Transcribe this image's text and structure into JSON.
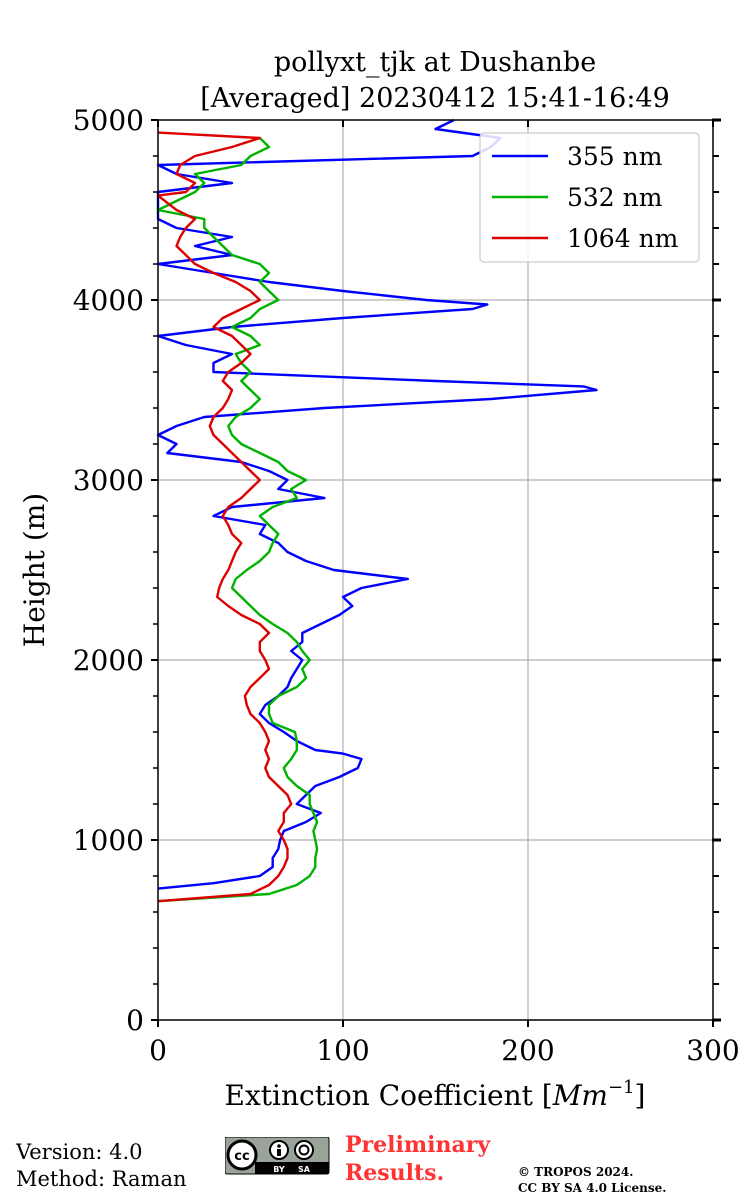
{
  "chart_data": {
    "type": "line",
    "title_line1": "pollyxt_tjk at Dushanbe",
    "title_line2": "[Averaged] 20230412 15:41-16:49",
    "xlabel": "Extinction Coefficient [",
    "xlabel_unit": "Mm",
    "xlabel_exp": "−1",
    "xlabel_close": "]",
    "ylabel": "Height (m)",
    "xlim": [
      0,
      300
    ],
    "ylim": [
      0,
      5000
    ],
    "xticks": [
      0,
      100,
      200,
      300
    ],
    "yticks": [
      0,
      1000,
      2000,
      3000,
      4000,
      5000
    ],
    "xtick_labels": [
      "0",
      "100",
      "200",
      "300"
    ],
    "ytick_labels": [
      "0",
      "1000",
      "2000",
      "3000",
      "4000",
      "5000"
    ],
    "grid": true,
    "legend_position": "top-right",
    "series": [
      {
        "name": "355 nm",
        "color": "#0000ff",
        "height": [
          730,
          760,
          800,
          850,
          900,
          950,
          1000,
          1050,
          1100,
          1150,
          1200,
          1250,
          1300,
          1350,
          1400,
          1450,
          1480,
          1500,
          1550,
          1600,
          1650,
          1700,
          1750,
          1800,
          1850,
          1900,
          1950,
          2000,
          2050,
          2100,
          2150,
          2200,
          2250,
          2300,
          2350,
          2400,
          2450,
          2500,
          2550,
          2600,
          2650,
          2700,
          2750,
          2800,
          2850,
          2900,
          2950,
          3000,
          3050,
          3100,
          3150,
          3200,
          3250,
          3300,
          3350,
          3400,
          3450,
          3500,
          3520,
          3550,
          3600,
          3650,
          3700,
          3750,
          3800,
          3850,
          3900,
          3950,
          3975,
          4000,
          4050,
          4100,
          4150,
          4200,
          4250,
          4300,
          4350,
          4400,
          4450,
          4500,
          4550,
          4600,
          4650,
          4700,
          4750,
          4800,
          4850,
          4900,
          4950,
          5000
        ],
        "values": [
          0,
          30,
          55,
          62,
          62,
          65,
          66,
          68,
          80,
          88,
          75,
          80,
          85,
          98,
          108,
          110,
          100,
          85,
          75,
          68,
          60,
          55,
          58,
          65,
          70,
          72,
          75,
          78,
          72,
          78,
          78,
          88,
          98,
          105,
          100,
          110,
          135,
          95,
          80,
          70,
          65,
          55,
          58,
          30,
          40,
          90,
          65,
          70,
          60,
          45,
          5,
          10,
          0,
          10,
          25,
          90,
          180,
          237,
          230,
          150,
          30,
          30,
          40,
          15,
          0,
          40,
          100,
          170,
          178,
          145,
          100,
          60,
          30,
          0,
          40,
          20,
          40,
          10,
          0,
          0,
          0,
          0,
          40,
          10,
          0,
          170,
          180,
          185,
          150,
          160
        ]
      },
      {
        "name": "532 nm",
        "color": "#00b300",
        "height": [
          660,
          700,
          750,
          800,
          850,
          900,
          950,
          1000,
          1050,
          1100,
          1150,
          1200,
          1250,
          1300,
          1350,
          1400,
          1450,
          1500,
          1550,
          1600,
          1650,
          1700,
          1750,
          1800,
          1850,
          1900,
          1950,
          2000,
          2050,
          2100,
          2150,
          2200,
          2250,
          2300,
          2350,
          2400,
          2450,
          2500,
          2550,
          2600,
          2650,
          2700,
          2750,
          2800,
          2850,
          2900,
          2950,
          3000,
          3050,
          3100,
          3150,
          3200,
          3250,
          3300,
          3350,
          3400,
          3450,
          3500,
          3550,
          3600,
          3650,
          3700,
          3750,
          3800,
          3850,
          3900,
          3950,
          4000,
          4050,
          4100,
          4150,
          4200,
          4250,
          4300,
          4350,
          4400,
          4450,
          4500,
          4600,
          4650,
          4700,
          4750,
          4800,
          4850,
          4900,
          4950
        ],
        "values": [
          0,
          60,
          75,
          82,
          85,
          85,
          86,
          85,
          84,
          86,
          84,
          82,
          82,
          75,
          70,
          68,
          72,
          75,
          75,
          74,
          62,
          60,
          60,
          65,
          75,
          80,
          78,
          82,
          78,
          75,
          70,
          62,
          55,
          50,
          45,
          40,
          42,
          48,
          55,
          60,
          62,
          65,
          60,
          55,
          62,
          75,
          72,
          80,
          70,
          65,
          55,
          45,
          40,
          38,
          42,
          50,
          55,
          50,
          45,
          50,
          45,
          42,
          55,
          50,
          40,
          50,
          55,
          65,
          60,
          55,
          60,
          55,
          40,
          35,
          30,
          25,
          25,
          0,
          20,
          25,
          20,
          45,
          50,
          60,
          55
        ]
      },
      {
        "name": "1064 nm",
        "color": "#dd0000",
        "height": [
          660,
          700,
          750,
          800,
          850,
          900,
          950,
          1000,
          1050,
          1100,
          1150,
          1200,
          1250,
          1300,
          1350,
          1400,
          1450,
          1500,
          1550,
          1600,
          1650,
          1700,
          1750,
          1800,
          1850,
          1900,
          1950,
          2000,
          2050,
          2100,
          2150,
          2200,
          2250,
          2300,
          2350,
          2400,
          2450,
          2500,
          2550,
          2600,
          2650,
          2700,
          2750,
          2800,
          2850,
          2900,
          2950,
          3000,
          3050,
          3100,
          3150,
          3200,
          3250,
          3300,
          3350,
          3400,
          3450,
          3500,
          3550,
          3600,
          3650,
          3700,
          3750,
          3800,
          3850,
          3900,
          3950,
          4000,
          4050,
          4100,
          4150,
          4200,
          4250,
          4300,
          4350,
          4400,
          4450,
          4500,
          4580,
          4600,
          4650,
          4700,
          4750,
          4800,
          4850,
          4900,
          4930
        ],
        "values": [
          0,
          50,
          60,
          65,
          68,
          70,
          70,
          68,
          65,
          68,
          68,
          72,
          70,
          65,
          60,
          58,
          60,
          58,
          60,
          58,
          55,
          50,
          48,
          47,
          50,
          55,
          60,
          58,
          55,
          55,
          60,
          55,
          45,
          38,
          32,
          33,
          35,
          38,
          40,
          42,
          45,
          40,
          38,
          35,
          38,
          45,
          50,
          55,
          50,
          45,
          40,
          35,
          30,
          28,
          30,
          35,
          38,
          40,
          35,
          38,
          45,
          50,
          45,
          40,
          30,
          35,
          45,
          55,
          50,
          42,
          30,
          20,
          15,
          10,
          12,
          15,
          20,
          10,
          0,
          15,
          20,
          10,
          12,
          20,
          40,
          55,
          0
        ]
      }
    ]
  },
  "footer": {
    "version": "Version: 4.0",
    "method": "Method: Raman",
    "preliminary_line1": "Preliminary",
    "preliminary_line2": "Results.",
    "copyright_line1": "© TROPOS 2024.",
    "copyright_line2": "CC BY SA 4.0 License.",
    "cc_label": "cc",
    "by_label": "BY",
    "sa_label": "SA"
  }
}
